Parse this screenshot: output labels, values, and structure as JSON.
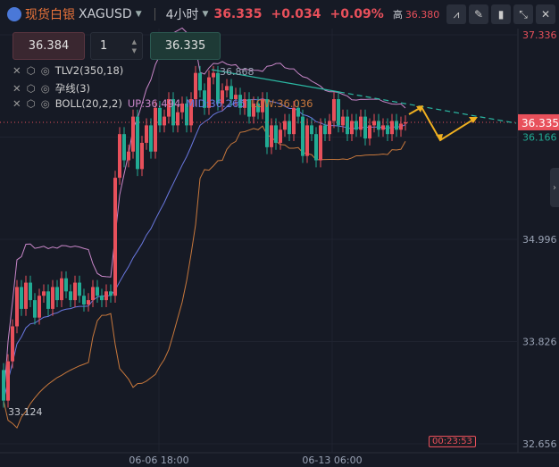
{
  "header": {
    "name": "现货白银",
    "symbol": "XAGUSD",
    "interval": "4小时",
    "price": "36.335",
    "change": "+0.034",
    "change_pct": "+0.09%",
    "high_label": "高",
    "high_value": "36.380"
  },
  "toolbar": {
    "icons": [
      "indicator-icon",
      "draw-icon",
      "candle-type-icon",
      "collapse-icon",
      "close-icon"
    ]
  },
  "trade": {
    "sell_price": "36.384",
    "quantity": "1",
    "buy_price": "36.335"
  },
  "indicators": [
    {
      "label": "TLV2(350,18)"
    },
    {
      "label": "孕线(3)"
    },
    {
      "label": "BOLL(20,2,2)",
      "up": "UP:36.494",
      "mid": "MID:36.265",
      "low": "LOW:36.036"
    }
  ],
  "timer": "00:23:53",
  "colors": {
    "up": "#e8505b",
    "down": "#22ab94",
    "boll_up": "#c886c8",
    "boll_mid": "#6a78e0",
    "boll_low": "#c8783c",
    "trend": "#2bb7a2",
    "arrow": "#f0b020"
  },
  "chart_data": {
    "type": "candlestick",
    "ylim": [
      32.656,
      37.336
    ],
    "y_ticks": [
      "37.336",
      "36.166",
      "34.996",
      "33.826",
      "32.656"
    ],
    "current_price": "36.335",
    "x_ticks": [
      "06-06 18:00",
      "06-13 06:00"
    ],
    "annotations": {
      "high": "36.868",
      "low": "33.124"
    },
    "close": [
      33.15,
      33.6,
      34.0,
      34.45,
      34.2,
      34.5,
      34.3,
      34.1,
      34.35,
      34.4,
      34.2,
      34.45,
      34.3,
      34.55,
      34.4,
      34.3,
      34.5,
      34.35,
      34.25,
      34.3,
      34.45,
      34.35,
      34.3,
      34.4,
      34.35,
      35.7,
      36.2,
      35.9,
      36.0,
      36.4,
      35.8,
      36.1,
      36.3,
      36.0,
      36.5,
      36.3,
      36.4,
      36.6,
      36.3,
      36.45,
      36.55,
      36.3,
      36.6,
      36.9,
      36.7,
      36.5,
      36.85,
      36.9,
      36.55,
      36.7,
      36.75,
      36.6,
      36.65,
      36.5,
      36.6,
      36.4,
      36.55,
      36.45,
      36.6,
      36.05,
      36.3,
      36.1,
      36.25,
      36.35,
      36.2,
      36.5,
      36.4,
      35.95,
      36.3,
      36.2,
      35.9,
      36.3,
      36.2,
      36.35,
      36.6,
      36.3,
      36.4,
      36.2,
      36.35,
      36.25,
      36.4,
      36.15,
      36.3,
      36.35,
      36.25,
      36.3,
      36.2,
      36.35,
      36.25,
      36.32,
      36.335
    ]
  }
}
